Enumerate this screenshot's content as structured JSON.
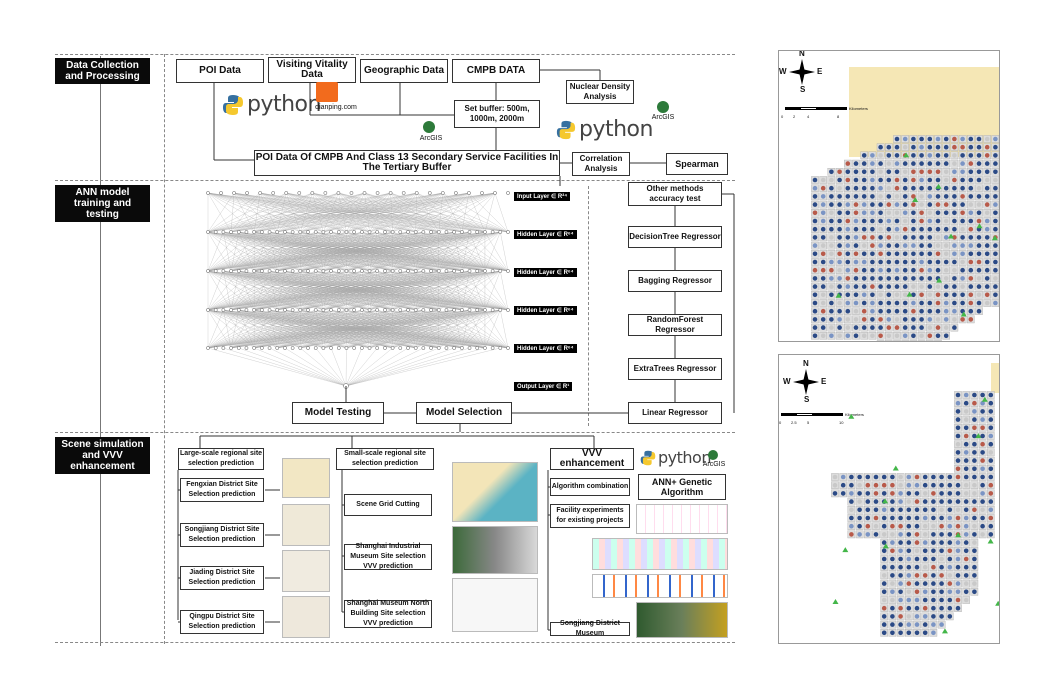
{
  "stages": {
    "s1": "Data Collection and Processing",
    "s2": "ANN model training and testing",
    "s3": "Scene simulation and VVV enhancement"
  },
  "sec1": {
    "poi": "POI Data",
    "vitality": "Visiting Vitality Data",
    "geo": "Geographic Data",
    "cmpb": "CMPB DATA",
    "nuclear": "Nuclear Density Analysis",
    "buffer": "Set buffer: 500m, 1000m, 2000m",
    "poi_cmpb": "POI Data Of CMPB And Class 13 Secondary Service Facilities In The Tertiary Buffer",
    "correlation": "Correlation Analysis",
    "spearman": "Spearman",
    "python": "python",
    "dianping": "dianping.com",
    "arcgis": "ArcGIS"
  },
  "sec2": {
    "layers": [
      "Input Layer ∈ R²⁴",
      "Hidden Layer ∈ R⁶⁴",
      "Hidden Layer ∈ R⁶⁴",
      "Hidden Layer ∈ R⁶⁴",
      "Hidden Layer ∈ R⁶⁴",
      "Output Layer ∈ R¹"
    ],
    "model_testing": "Model Testing",
    "model_selection": "Model Selection",
    "other_methods": "Other methods accuracy test",
    "regressors": [
      "DecisionTree Regressor",
      "Bagging Regressor",
      "RandomForest Regressor",
      "ExtraTrees Regressor",
      "Linear Regressor"
    ]
  },
  "sec3": {
    "large_scale": "Large-scale regional site selection prediction",
    "fengxian": "Fengxian District Site Selection prediction",
    "songjiang": "Songjiang District Site Selection prediction",
    "jiading": "Jiading District Site Selection prediction",
    "qingpu": "Qingpu District Site Selection prediction",
    "small_scale": "Small-scale regional site selection prediction",
    "grid_cutting": "Scene Grid Cutting",
    "industrial": "Shanghai Industrial Museum Site selection VVV prediction",
    "museum_north": "Shanghai Museum North Building Site selection VVV prediction",
    "vvv": "VVV enhancement",
    "algo": "Algorithm combination",
    "ann_ga": "ANN+ Genetic Algorithm",
    "facility": "Facility experiments for existing projects",
    "songjiang_museum": "Songjiang District Museum"
  },
  "maps": {
    "scale1": [
      "0",
      "2",
      "4",
      "8",
      "Kilometers"
    ],
    "scale2": [
      "0",
      "2.5",
      "5",
      "10",
      "Kilometers"
    ],
    "compass": [
      "N",
      "E",
      "S",
      "W"
    ]
  }
}
